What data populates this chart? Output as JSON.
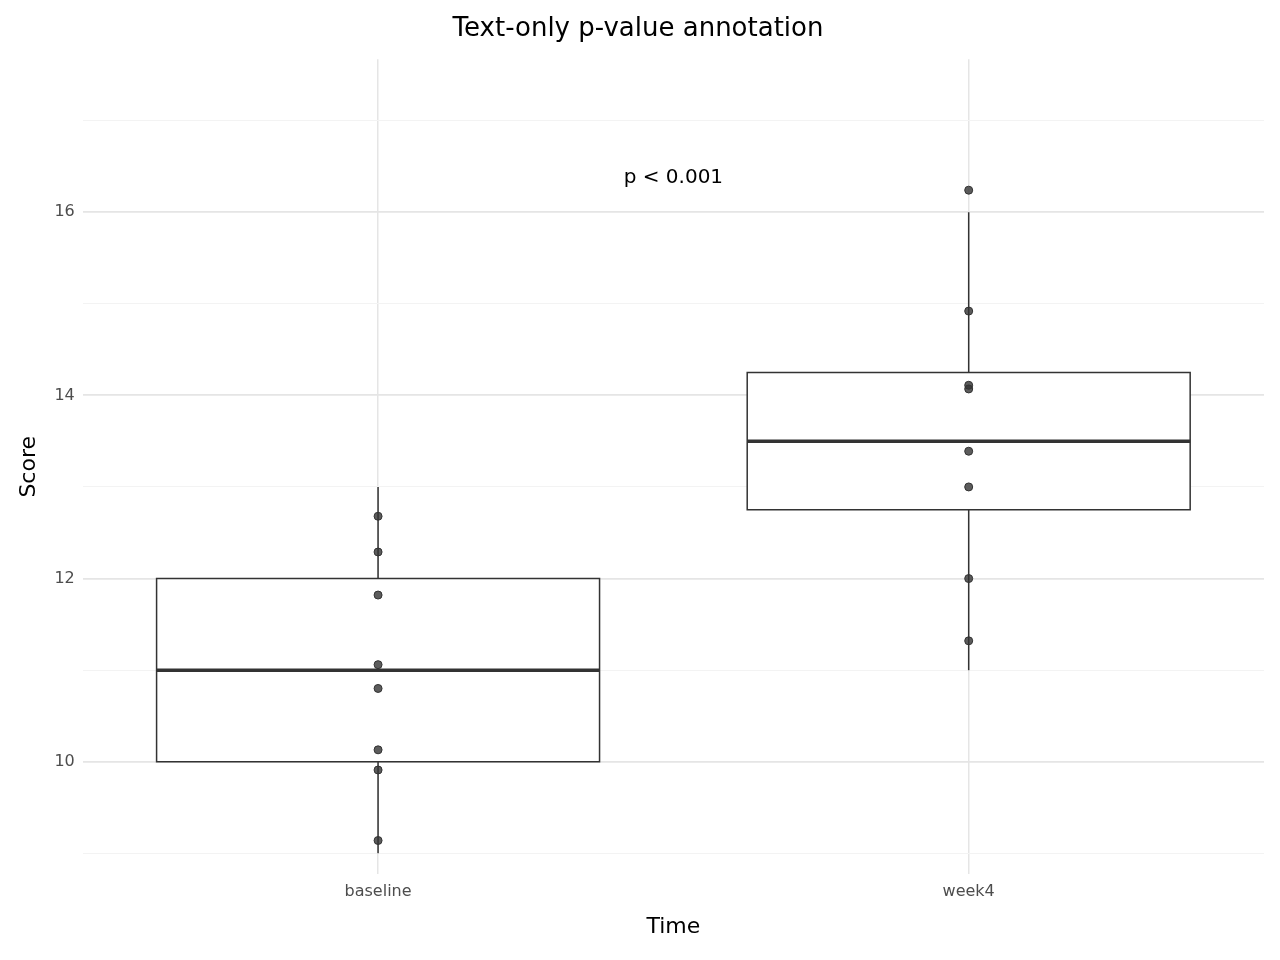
{
  "chart_data": {
    "type": "box",
    "title": "Text-only p-value annotation",
    "xlabel": "Time",
    "ylabel": "Score",
    "categories": [
      "baseline",
      "week4"
    ],
    "boxes": [
      {
        "low": 9,
        "q1": 10,
        "median": 11,
        "q3": 12,
        "high": 13
      },
      {
        "low": 11,
        "q1": 12.75,
        "median": 13.5,
        "q3": 14.25,
        "high": 16
      }
    ],
    "series": [
      {
        "type": "scatter",
        "color": "#333333",
        "x": [
          "baseline",
          "baseline",
          "baseline",
          "baseline",
          "baseline",
          "baseline",
          "baseline",
          "baseline",
          "week4",
          "week4",
          "week4",
          "week4",
          "week4",
          "week4",
          "week4",
          "week4"
        ],
        "values": [
          12.68,
          11.82,
          11.06,
          10.8,
          10.13,
          12.29,
          9.91,
          9.14,
          14.11,
          14.07,
          12.0,
          13.39,
          16.24,
          14.92,
          13.0,
          11.32
        ]
      }
    ],
    "ylim": [
      8.77,
      17.67
    ],
    "yticks": [
      {
        "value": 9,
        "label": null
      },
      10,
      {
        "value": 11,
        "label": null
      },
      12,
      {
        "value": 13,
        "label": null
      },
      14,
      {
        "value": 15,
        "label": null
      },
      16,
      {
        "value": 17,
        "label": null
      }
    ],
    "grid": true,
    "legend": false,
    "marker": "circle",
    "annotations": [
      "p < 0.001"
    ]
  }
}
